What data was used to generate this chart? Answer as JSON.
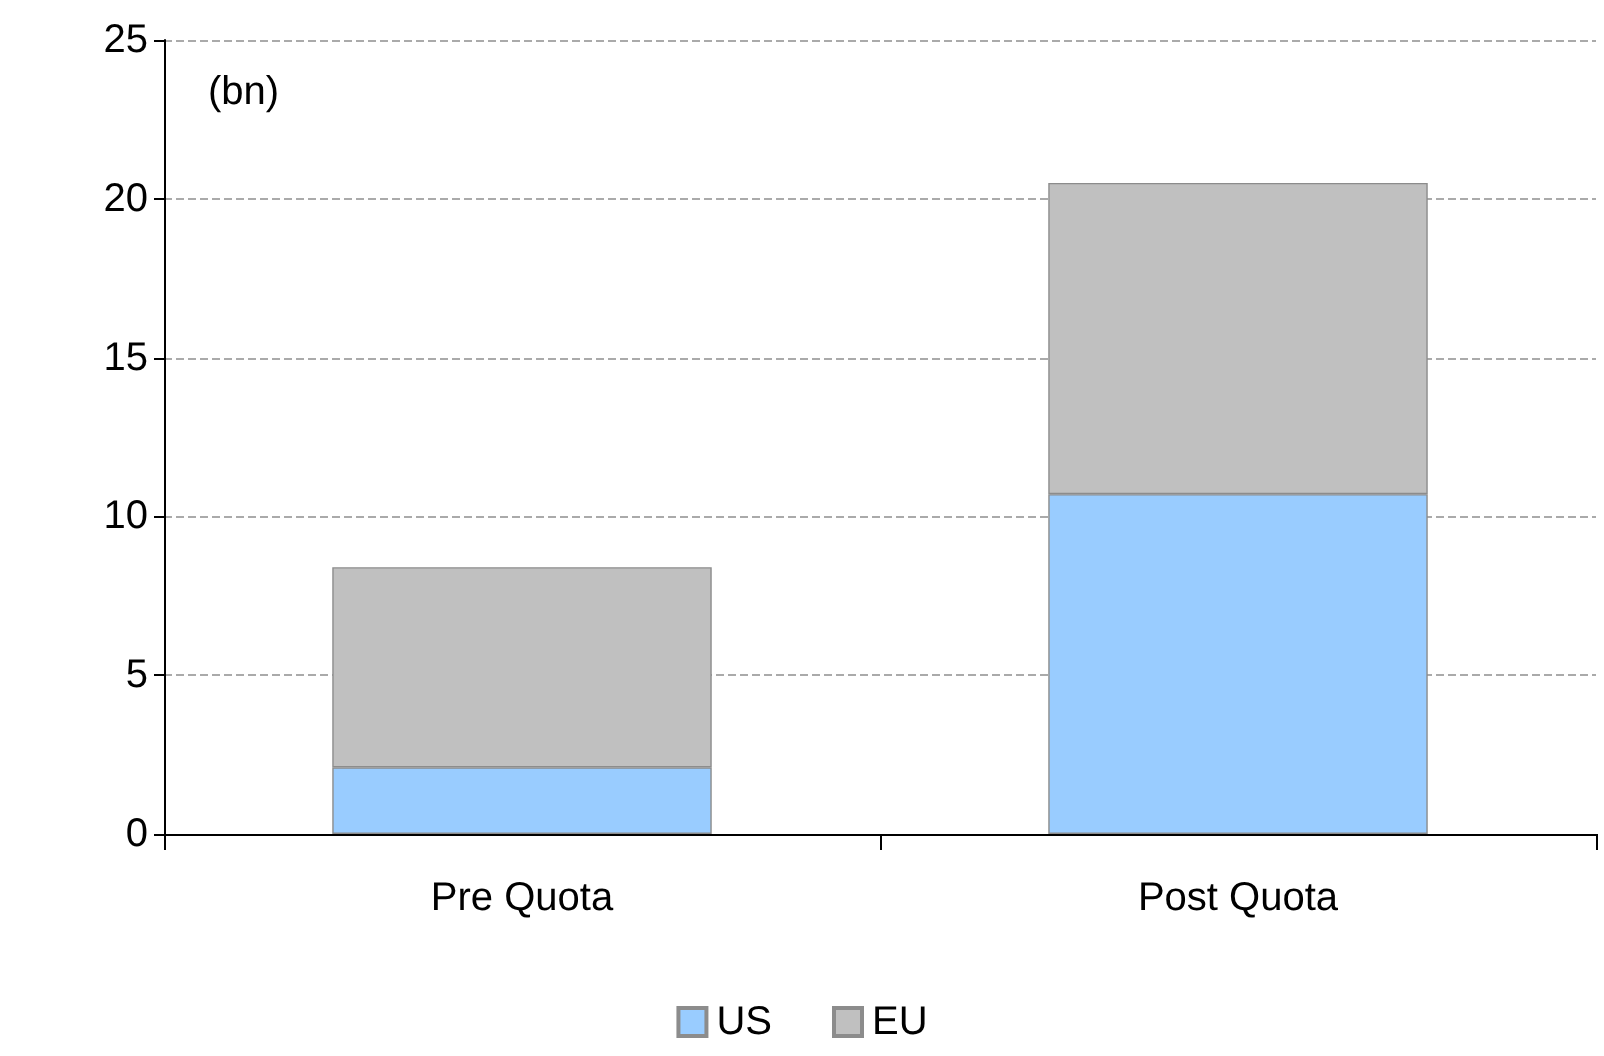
{
  "chart_data": {
    "type": "bar",
    "stacked": true,
    "categories": [
      "Pre Quota",
      "Post Quota"
    ],
    "series": [
      {
        "name": "US",
        "color": "#99ccff",
        "values": [
          2.1,
          10.7
        ]
      },
      {
        "name": "EU",
        "color": "#c0c0c0",
        "values": [
          6.3,
          9.8
        ]
      }
    ],
    "ylim": [
      0,
      25
    ],
    "yticks": [
      0,
      5,
      10,
      15,
      20,
      25
    ],
    "grid": "y",
    "legend": "bottom",
    "annotations": [
      "(bn)"
    ]
  }
}
